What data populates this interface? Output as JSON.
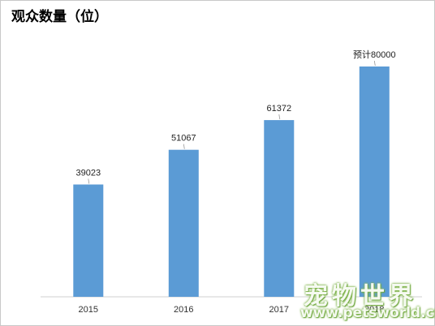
{
  "chart_data": {
    "type": "bar",
    "title": "观众数量（位）",
    "categories": [
      "2015",
      "2016",
      "2017",
      "2018"
    ],
    "values": [
      39023,
      51067,
      61372,
      80000
    ],
    "data_labels": [
      "39023",
      "51067",
      "61372",
      "预计80000"
    ],
    "xlabel": "",
    "ylabel": "",
    "ylim": [
      0,
      80000
    ],
    "grid": false,
    "bar_color": "#5b9bd5"
  },
  "watermark": {
    "text": "宠物世界",
    "url": "www.petsworld.cn"
  }
}
